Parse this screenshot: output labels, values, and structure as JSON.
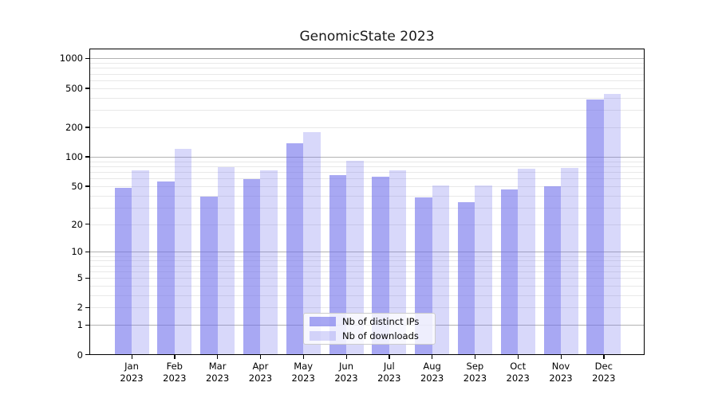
{
  "chart_data": {
    "type": "bar",
    "title": "GenomicState 2023",
    "categories": [
      "Jan",
      "Feb",
      "Mar",
      "Apr",
      "May",
      "Jun",
      "Jul",
      "Aug",
      "Sep",
      "Oct",
      "Nov",
      "Dec"
    ],
    "category_year": "2023",
    "series": [
      {
        "name": "Nb of distinct IPs",
        "color": "rgba(110,110,235,0.60)",
        "values": [
          48,
          56,
          39,
          59,
          137,
          65,
          62,
          38,
          34,
          46,
          50,
          383
        ]
      },
      {
        "name": "Nb of downloads",
        "color": "rgba(110,110,235,0.27)",
        "values": [
          72,
          120,
          78,
          72,
          178,
          91,
          73,
          51,
          51,
          75,
          77,
          440
        ]
      }
    ],
    "y_ticks": [
      0,
      1,
      2,
      5,
      10,
      20,
      50,
      100,
      200,
      500,
      1000
    ],
    "y_scale": "log10(1+x)",
    "ylim": [
      0,
      1200
    ],
    "grid": true,
    "legend_position": "lower center",
    "colors": {
      "major_grid": "#b2b2b2",
      "minor_grid": "#e8e8e8",
      "axis": "#000000"
    }
  }
}
